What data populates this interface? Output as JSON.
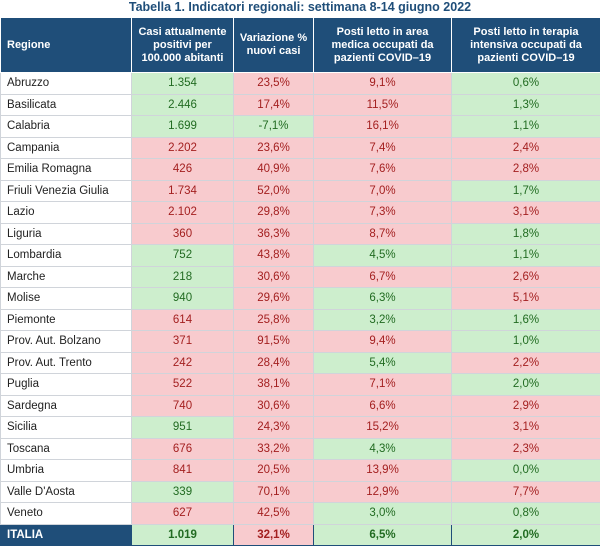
{
  "title": "Tabella 1. Indicatori regionali: settimana 8-14 giugno 2022",
  "headers": [
    "Regione",
    "Casi attualmente positivi per 100.000 abitanti",
    "Variazione % nuovi casi",
    "Posti letto in area medica occupati da pazienti COVID–19",
    "Posti letto in terapia intensiva occupati da pazienti COVID–19"
  ],
  "colors": {
    "header_bg": "#1f4e79",
    "red_cell": "#f8cbce",
    "green_cell": "#cdeecd",
    "title_text": "#1f4e79"
  },
  "rows": [
    {
      "region": "Abruzzo",
      "cases": "1.354",
      "cases_status": "g",
      "variation": "23,5%",
      "variation_status": "r",
      "medical": "9,1%",
      "medical_status": "r",
      "icu": "0,6%",
      "icu_status": "g"
    },
    {
      "region": "Basilicata",
      "cases": "2.446",
      "cases_status": "g",
      "variation": "17,4%",
      "variation_status": "r",
      "medical": "11,5%",
      "medical_status": "r",
      "icu": "1,3%",
      "icu_status": "g"
    },
    {
      "region": "Calabria",
      "cases": "1.699",
      "cases_status": "g",
      "variation": "-7,1%",
      "variation_status": "g",
      "medical": "16,1%",
      "medical_status": "r",
      "icu": "1,1%",
      "icu_status": "g"
    },
    {
      "region": "Campania",
      "cases": "2.202",
      "cases_status": "r",
      "variation": "23,6%",
      "variation_status": "r",
      "medical": "7,4%",
      "medical_status": "r",
      "icu": "2,4%",
      "icu_status": "r"
    },
    {
      "region": "Emilia Romagna",
      "cases": "426",
      "cases_status": "r",
      "variation": "40,9%",
      "variation_status": "r",
      "medical": "7,6%",
      "medical_status": "r",
      "icu": "2,8%",
      "icu_status": "r"
    },
    {
      "region": "Friuli Venezia Giulia",
      "cases": "1.734",
      "cases_status": "r",
      "variation": "52,0%",
      "variation_status": "r",
      "medical": "7,0%",
      "medical_status": "r",
      "icu": "1,7%",
      "icu_status": "g"
    },
    {
      "region": "Lazio",
      "cases": "2.102",
      "cases_status": "r",
      "variation": "29,8%",
      "variation_status": "r",
      "medical": "7,3%",
      "medical_status": "r",
      "icu": "3,1%",
      "icu_status": "r"
    },
    {
      "region": "Liguria",
      "cases": "360",
      "cases_status": "r",
      "variation": "36,3%",
      "variation_status": "r",
      "medical": "8,7%",
      "medical_status": "r",
      "icu": "1,8%",
      "icu_status": "g"
    },
    {
      "region": "Lombardia",
      "cases": "752",
      "cases_status": "g",
      "variation": "43,8%",
      "variation_status": "r",
      "medical": "4,5%",
      "medical_status": "g",
      "icu": "1,1%",
      "icu_status": "g"
    },
    {
      "region": "Marche",
      "cases": "218",
      "cases_status": "g",
      "variation": "30,6%",
      "variation_status": "r",
      "medical": "6,7%",
      "medical_status": "r",
      "icu": "2,6%",
      "icu_status": "r"
    },
    {
      "region": "Molise",
      "cases": "940",
      "cases_status": "g",
      "variation": "29,6%",
      "variation_status": "r",
      "medical": "6,3%",
      "medical_status": "g",
      "icu": "5,1%",
      "icu_status": "r"
    },
    {
      "region": "Piemonte",
      "cases": "614",
      "cases_status": "r",
      "variation": "25,8%",
      "variation_status": "r",
      "medical": "3,2%",
      "medical_status": "g",
      "icu": "1,6%",
      "icu_status": "g"
    },
    {
      "region": "Prov. Aut. Bolzano",
      "cases": "371",
      "cases_status": "r",
      "variation": "91,5%",
      "variation_status": "r",
      "medical": "9,4%",
      "medical_status": "r",
      "icu": "1,0%",
      "icu_status": "g"
    },
    {
      "region": "Prov. Aut. Trento",
      "cases": "242",
      "cases_status": "r",
      "variation": "28,4%",
      "variation_status": "r",
      "medical": "5,4%",
      "medical_status": "g",
      "icu": "2,2%",
      "icu_status": "r"
    },
    {
      "region": "Puglia",
      "cases": "522",
      "cases_status": "r",
      "variation": "38,1%",
      "variation_status": "r",
      "medical": "7,1%",
      "medical_status": "r",
      "icu": "2,0%",
      "icu_status": "g"
    },
    {
      "region": "Sardegna",
      "cases": "740",
      "cases_status": "r",
      "variation": "30,6%",
      "variation_status": "r",
      "medical": "6,6%",
      "medical_status": "r",
      "icu": "2,9%",
      "icu_status": "r"
    },
    {
      "region": "Sicilia",
      "cases": "951",
      "cases_status": "g",
      "variation": "24,3%",
      "variation_status": "r",
      "medical": "15,2%",
      "medical_status": "r",
      "icu": "3,1%",
      "icu_status": "r"
    },
    {
      "region": "Toscana",
      "cases": "676",
      "cases_status": "r",
      "variation": "33,2%",
      "variation_status": "r",
      "medical": "4,3%",
      "medical_status": "g",
      "icu": "2,3%",
      "icu_status": "r"
    },
    {
      "region": "Umbria",
      "cases": "841",
      "cases_status": "r",
      "variation": "20,5%",
      "variation_status": "r",
      "medical": "13,9%",
      "medical_status": "r",
      "icu": "0,0%",
      "icu_status": "g"
    },
    {
      "region": "Valle D'Aosta",
      "cases": "339",
      "cases_status": "g",
      "variation": "70,1%",
      "variation_status": "r",
      "medical": "12,9%",
      "medical_status": "r",
      "icu": "7,7%",
      "icu_status": "r"
    },
    {
      "region": "Veneto",
      "cases": "627",
      "cases_status": "r",
      "variation": "42,5%",
      "variation_status": "r",
      "medical": "3,0%",
      "medical_status": "g",
      "icu": "0,8%",
      "icu_status": "g"
    }
  ],
  "total": {
    "region": "ITALIA",
    "cases": "1.019",
    "cases_status": "g",
    "variation": "32,1%",
    "variation_status": "r",
    "medical": "6,5%",
    "medical_status": "g",
    "icu": "2,0%",
    "icu_status": "g"
  }
}
